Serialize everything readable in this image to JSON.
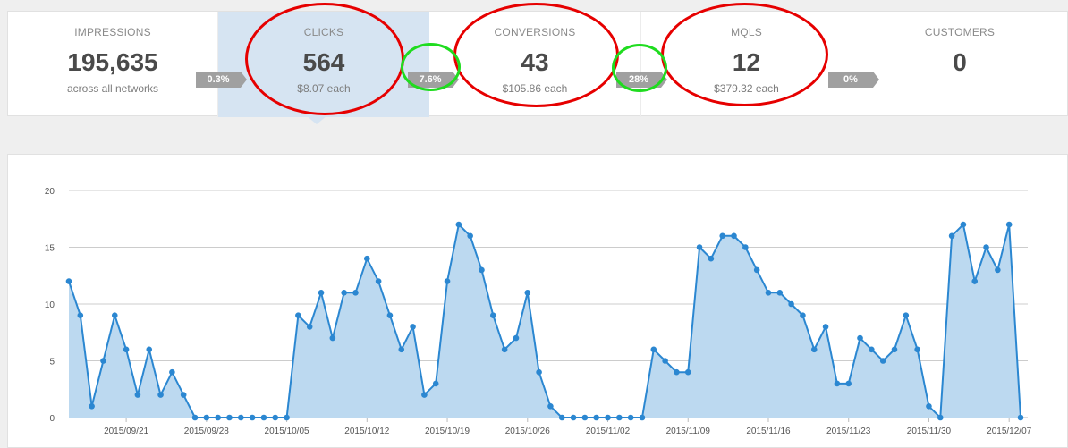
{
  "funnel": {
    "stages": [
      {
        "label": "IMPRESSIONS",
        "value": "195,635",
        "sub": "across all networks"
      },
      {
        "label": "CLICKS",
        "value": "564",
        "sub": "$8.07 each"
      },
      {
        "label": "CONVERSIONS",
        "value": "43",
        "sub": "$105.86 each"
      },
      {
        "label": "MQLS",
        "value": "12",
        "sub": "$379.32 each"
      },
      {
        "label": "CUSTOMERS",
        "value": "0",
        "sub": ""
      }
    ],
    "rates": [
      "0.3%",
      "7.6%",
      "28%",
      "0%"
    ],
    "active_stage": "CLICKS",
    "highlight_colors": {
      "red_ring": "#e60000",
      "green_ring": "#1fdc1f",
      "active_bg": "#d6e4f2",
      "rate_bg": "#a0a0a0"
    }
  },
  "chart_data": {
    "type": "area",
    "title": "",
    "xlabel": "",
    "ylabel": "",
    "ylim": [
      0,
      20
    ],
    "yticks": [
      0,
      5,
      10,
      15,
      20
    ],
    "grid": true,
    "x_tick_labels": [
      "2015/09/21",
      "2015/09/28",
      "2015/10/05",
      "2015/10/12",
      "2015/10/19",
      "2015/10/26",
      "2015/11/02",
      "2015/11/09",
      "2015/11/16",
      "2015/11/23",
      "2015/11/30",
      "2015/12/07"
    ],
    "x_start": "2015/09/16",
    "x_end": "2015/12/08",
    "colors": {
      "line": "#2b87d1",
      "fill": "#bcd9f0",
      "grid": "#cccccc"
    },
    "values": [
      12,
      9,
      1,
      5,
      9,
      6,
      2,
      6,
      2,
      4,
      2,
      0,
      0,
      0,
      0,
      0,
      0,
      0,
      0,
      0,
      9,
      8,
      11,
      7,
      11,
      11,
      14,
      12,
      9,
      6,
      8,
      2,
      3,
      12,
      17,
      16,
      13,
      9,
      6,
      7,
      11,
      4,
      1,
      0,
      0,
      0,
      0,
      0,
      0,
      0,
      0,
      6,
      5,
      4,
      4,
      15,
      14,
      16,
      16,
      15,
      13,
      11,
      11,
      10,
      9,
      6,
      8,
      3,
      3,
      7,
      6,
      5,
      6,
      9,
      6,
      1,
      0,
      16,
      17,
      12,
      15,
      13,
      17,
      0
    ]
  }
}
